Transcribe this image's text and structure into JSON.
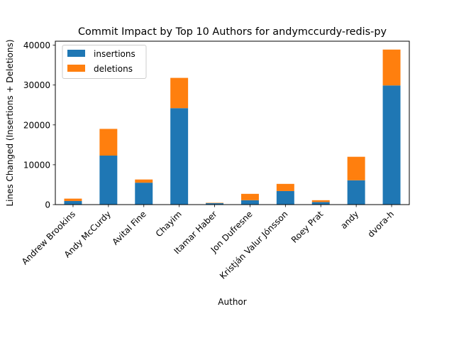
{
  "chart_data": {
    "type": "bar",
    "stacked": true,
    "title": "Commit Impact by Top 10 Authors for andymccurdy-redis-py",
    "xlabel": "Author",
    "ylabel": "Lines Changed (Insertions + Deletions)",
    "categories": [
      "Andrew Brookins",
      "Andy McCurdy",
      "Avital Fine",
      "Chayim",
      "Itamar Haber",
      "Jon Dufresne",
      "Kristján Valur Jónsson",
      "Roey Prat",
      "andy",
      "dvora-h"
    ],
    "series": [
      {
        "name": "insertions",
        "color": "#1f77b4",
        "values": [
          900,
          12300,
          5500,
          24200,
          350,
          1100,
          3400,
          650,
          6100,
          29900
        ]
      },
      {
        "name": "deletions",
        "color": "#ff7f0e",
        "values": [
          600,
          6700,
          800,
          7600,
          100,
          1600,
          1800,
          450,
          5900,
          9000
        ]
      }
    ],
    "ylim": [
      0,
      41000
    ],
    "yticks": [
      0,
      10000,
      20000,
      30000,
      40000
    ],
    "ytick_labels": [
      "0",
      "10000",
      "20000",
      "30000",
      "40000"
    ],
    "legend_position": "upper-left",
    "grid": false
  }
}
